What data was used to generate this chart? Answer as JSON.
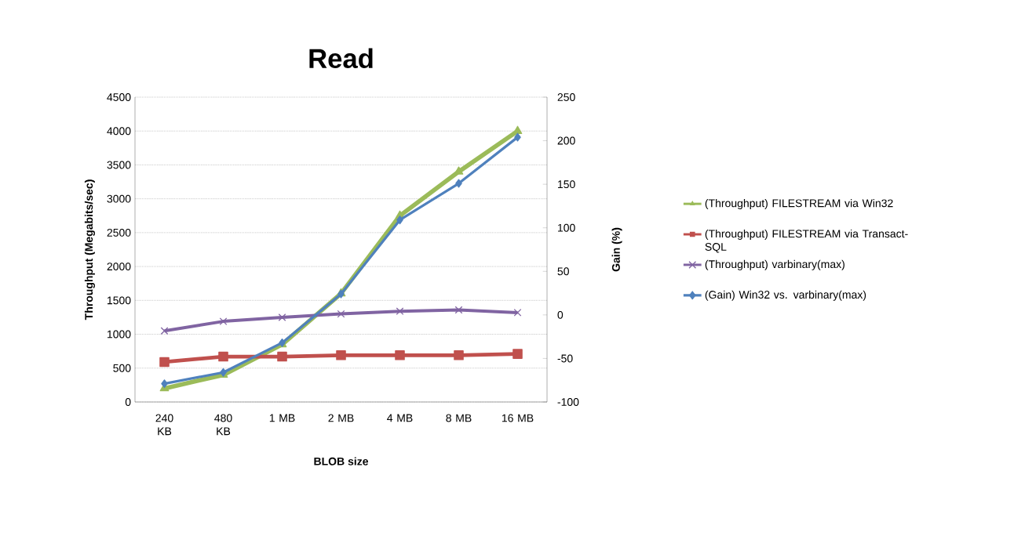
{
  "chart_data": {
    "type": "line",
    "title": "Read",
    "xlabel": "BLOB size",
    "ylabel": "Throughput (Megabits/sec)",
    "y2label": "Gain (%)",
    "categories": [
      "240 KB",
      "480 KB",
      "1 MB",
      "2 MB",
      "4 MB",
      "8 MB",
      "16 MB"
    ],
    "series": [
      {
        "name": "(Throughput) FILESTREAM via Win32",
        "color": "#9bbb59",
        "marker": "triangle",
        "values": [
          200,
          400,
          850,
          1600,
          2750,
          3400,
          4000
        ]
      },
      {
        "name": "(Throughput) FILESTREAM via Transact-SQL",
        "color": "#c0504d",
        "marker": "square",
        "values": [
          590,
          670,
          670,
          690,
          690,
          690,
          710
        ]
      },
      {
        "name": "(Throughput) varbinary(max)",
        "color": "#8064a2",
        "marker": "cross",
        "values": [
          1050,
          1190,
          1250,
          1300,
          1340,
          1360,
          1320
        ]
      },
      {
        "name": "(Gain) Win32 vs. varbinary(max)",
        "color": "#4f81bd",
        "marker": "diamond",
        "axis": "y2",
        "values": [
          -79,
          -66,
          -32,
          24,
          109,
          151,
          204
        ]
      }
    ],
    "ylim": [
      0,
      4500
    ],
    "yticks": [
      0,
      500,
      1000,
      1500,
      2000,
      2500,
      3000,
      3500,
      4000,
      4500
    ],
    "y2lim": [
      -100,
      250
    ],
    "y2ticks": [
      -100,
      -50,
      0,
      50,
      100,
      150,
      200,
      250
    ],
    "grid": "y",
    "legend": "right"
  }
}
